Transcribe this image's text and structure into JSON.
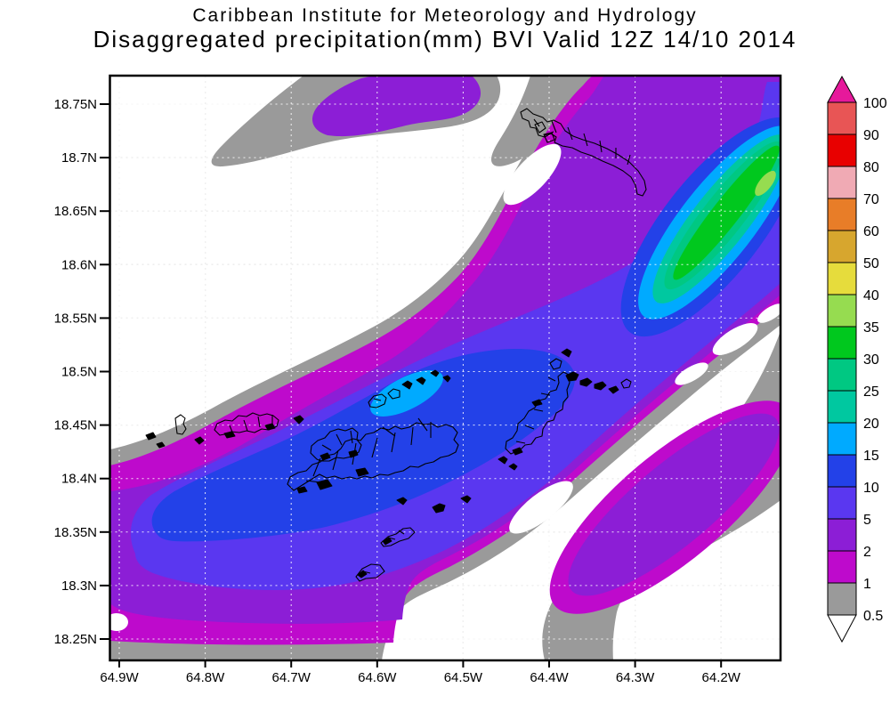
{
  "title": {
    "line1": "Caribbean Institute for Meteorology and Hydrology",
    "line2": "Disaggregated precipitation(mm) BVI Valid 12Z 14/10 2014"
  },
  "y_axis": {
    "labels": [
      "18.75N",
      "18.7N",
      "18.65N",
      "18.6N",
      "18.55N",
      "18.5N",
      "18.45N",
      "18.4N",
      "18.35N",
      "18.3N",
      "18.25N"
    ]
  },
  "x_axis": {
    "labels": [
      "64.9W",
      "64.8W",
      "64.7W",
      "64.6W",
      "64.5W",
      "64.4W",
      "64.3W",
      "64.2W"
    ]
  },
  "colorbar": {
    "labels": [
      "100",
      "90",
      "80",
      "70",
      "60",
      "50",
      "40",
      "35",
      "30",
      "25",
      "20",
      "15",
      "10",
      "5",
      "2",
      "1",
      "0.5"
    ],
    "box_colors": [
      "#E85555",
      "#E80000",
      "#F0AAB4",
      "#E87D28",
      "#D7A62E",
      "#E6DC3C",
      "#96DC50",
      "#00C81E",
      "#00C882",
      "#00C8A0",
      "#00AAFF",
      "#2341E8",
      "#5A37F0",
      "#8C1ED6",
      "#BE0ACC",
      "#9A9A9A"
    ],
    "top_arrow_color": "#E6199B",
    "bottom_arrow_color": "#FFFFFF"
  },
  "chart_data": {
    "type": "heatmap",
    "title": "Caribbean Institute for Meteorology and Hydrology",
    "subtitle": "Disaggregated precipitation(mm) BVI Valid 12Z 14/10 2014",
    "units": "mm",
    "lat_ticks": [
      "18.25N",
      "18.3N",
      "18.35N",
      "18.4N",
      "18.45N",
      "18.5N",
      "18.55N",
      "18.6N",
      "18.65N",
      "18.7N",
      "18.75N"
    ],
    "lon_ticks": [
      "64.9W",
      "64.8W",
      "64.7W",
      "64.6W",
      "64.5W",
      "64.4W",
      "64.3W",
      "64.2W"
    ],
    "contour_levels_mm": [
      0.5,
      1,
      2,
      5,
      10,
      15,
      20,
      25,
      30,
      35,
      40,
      50,
      60,
      70,
      80,
      90,
      100
    ],
    "grid": "dotted graticule every 0.1 deg lon and 0.05 deg lat",
    "legend_position": "right vertical color bar with over/under arrows",
    "features": [
      "Main SW-NE precipitation band (2-15 mm) covering the Virgin Islands chain, core 10-15 mm around Tortola and St. Thomas",
      "Small 15-20 mm cyan patch near 64.6W 18.48N north of Tortola",
      "Intense NE band near 64.2W 18.55-18.7N with nested 15/20/25/30 mm contours, green core 30-35 mm and tiny 35-40 mm spot at east edge",
      "Gray fringe = 0.5-1 mm, magenta 1-2 mm, purple 2-5 mm surrounding all bands",
      "Separate SE band (0.5-5 mm) running toward 64.2W 18.45N with purple core",
      "White background areas < 0.5 mm in NW corner, between bands, and SE corner",
      "Black watershed outlines of BVI/USVI islands: Anegada, Tortola, Virgin Gorda, Jost Van Dyke, St. Thomas, St. John and outlying cays"
    ]
  }
}
